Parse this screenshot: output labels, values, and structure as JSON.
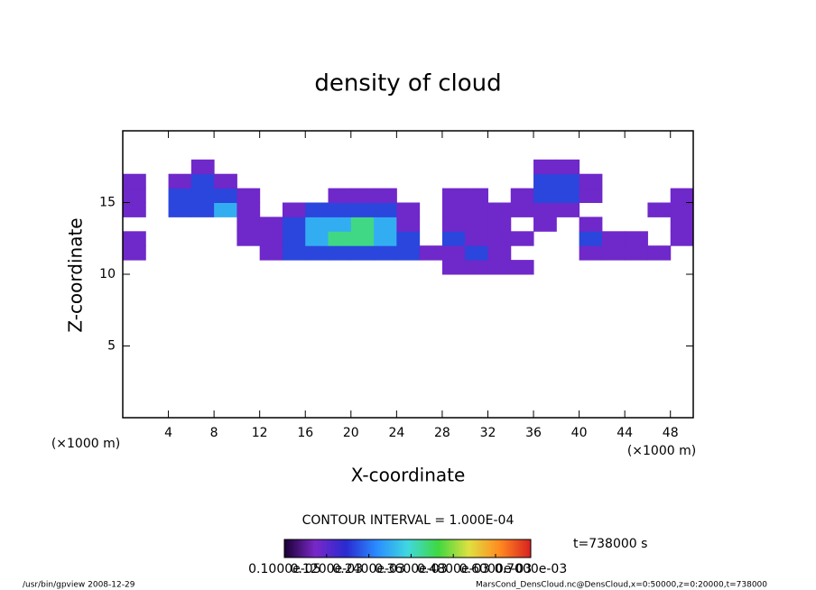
{
  "chart_data": {
    "type": "heatmap",
    "title": "density of cloud",
    "xlabel": "X-coordinate",
    "ylabel": "Z-coordinate",
    "xunit": "(×1000 m)",
    "yunit": "(×1000 m)",
    "xlim": [
      0,
      50
    ],
    "ylim": [
      0,
      20
    ],
    "xticks": [
      4,
      8,
      12,
      16,
      20,
      24,
      28,
      32,
      36,
      40,
      44,
      48
    ],
    "yticks": [
      5,
      10,
      15
    ],
    "x_edges": [
      0,
      2,
      4,
      6,
      8,
      10,
      12,
      14,
      16,
      18,
      20,
      22,
      24,
      26,
      28,
      30,
      32,
      34,
      36,
      38,
      40,
      42,
      44,
      46,
      48,
      50
    ],
    "z_edges": [
      10,
      11,
      12,
      13,
      14,
      15,
      16,
      17,
      18
    ],
    "values": [
      [
        null,
        null,
        null,
        null,
        null,
        null,
        null,
        null,
        null,
        null,
        null,
        null,
        null,
        null,
        0.0001,
        0.0001,
        0.0001,
        0.0001,
        null,
        null,
        null,
        null,
        null,
        null,
        null
      ],
      [
        0.0001,
        null,
        null,
        null,
        null,
        null,
        0.0001,
        0.0002,
        0.0002,
        0.0002,
        0.0002,
        0.0002,
        0.0002,
        0.0001,
        0.0001,
        0.0002,
        0.0001,
        null,
        null,
        null,
        0.0001,
        0.0001,
        0.0001,
        0.0001,
        null
      ],
      [
        0.0001,
        null,
        null,
        null,
        null,
        0.0001,
        0.0001,
        0.0002,
        0.0003,
        0.0004,
        0.0004,
        0.0003,
        0.0002,
        null,
        0.0002,
        0.0001,
        0.0001,
        0.0001,
        null,
        null,
        0.0002,
        0.0001,
        0.0001,
        null,
        0.0001
      ],
      [
        null,
        null,
        null,
        null,
        null,
        0.0001,
        0.0001,
        0.0002,
        0.0003,
        0.0003,
        0.0004,
        0.0003,
        0.0001,
        null,
        0.0001,
        0.0001,
        0.0001,
        null,
        0.0001,
        null,
        0.0001,
        null,
        null,
        null,
        0.0001
      ],
      [
        0.0001,
        null,
        0.0002,
        0.0002,
        0.0003,
        0.0001,
        null,
        0.0001,
        0.0002,
        0.0002,
        0.0002,
        0.0002,
        0.0001,
        null,
        0.0001,
        0.0001,
        0.0001,
        0.0001,
        0.0001,
        0.0001,
        null,
        null,
        null,
        0.0001,
        0.0001
      ],
      [
        0.0001,
        null,
        0.0002,
        0.0002,
        0.0002,
        0.0001,
        null,
        null,
        null,
        0.0001,
        0.0001,
        0.0001,
        null,
        null,
        0.0001,
        0.0001,
        null,
        0.0001,
        0.0002,
        0.0002,
        0.0001,
        null,
        null,
        null,
        0.0001
      ],
      [
        0.0001,
        null,
        0.0001,
        0.0002,
        0.0001,
        null,
        null,
        null,
        null,
        null,
        null,
        null,
        null,
        null,
        null,
        null,
        null,
        null,
        0.0002,
        0.0002,
        0.0001,
        null,
        null,
        null,
        null
      ],
      [
        null,
        null,
        null,
        0.0001,
        null,
        null,
        null,
        null,
        null,
        null,
        null,
        null,
        null,
        null,
        null,
        null,
        null,
        null,
        0.0001,
        0.0001,
        null,
        null,
        null,
        null,
        null
      ]
    ],
    "colorbar": {
      "lim": [
        0,
        0.0007
      ],
      "ticks": [
        {
          "value": 1e-06,
          "label": "0.1000e-05"
        },
        {
          "value": 0.00012,
          "label": "0.1200e-03"
        },
        {
          "value": 0.00024,
          "label": "0.2400e-03"
        },
        {
          "value": 0.00036,
          "label": "0.3600e-03"
        },
        {
          "value": 0.00048,
          "label": "0.4800e-03"
        },
        {
          "value": 0.0006,
          "label": "0.6000e-03"
        },
        {
          "value": 0.0007,
          "label": "0.7000e-03"
        }
      ],
      "colors": [
        "#1a0033",
        "#7a28c8",
        "#2a2ad0",
        "#2a8cff",
        "#40d8e0",
        "#40d840",
        "#e0e040",
        "#ff8a20",
        "#d82020"
      ]
    },
    "contour_interval": "CONTOUR INTERVAL = 1.000E-04",
    "time": "t=738000 s",
    "footer_left": "/usr/bin/gpview  2008-12-29",
    "footer_right": "MarsCond_DensCloud.nc@DensCloud,x=0:50000,z=0:20000,t=738000"
  }
}
